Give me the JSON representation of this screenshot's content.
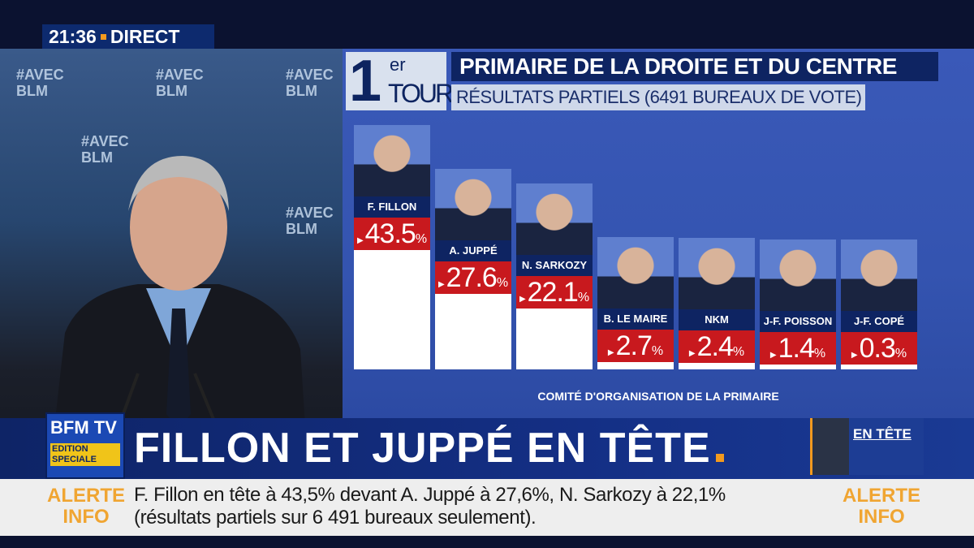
{
  "clock": {
    "time": "21:36",
    "label": "DIRECT"
  },
  "background_tags": [
    "#AVEC BLM",
    "#AVEC BLM",
    "#AVEC BLM",
    "#AVEC BLM",
    "#AVEC BLM"
  ],
  "chart_data": {
    "type": "bar",
    "tour": {
      "number": "1",
      "suffix": "er",
      "word": "TOUR"
    },
    "title": "PRIMAIRE DE LA DROITE ET DU CENTRE",
    "subtitle": "RÉSULTATS PARTIELS (6491 BUREAUX DE VOTE)",
    "categories": [
      "F. FILLON",
      "A. JUPPÉ",
      "N. SARKOZY",
      "B. LE MAIRE",
      "NKM",
      "J-F. POISSON",
      "J-F. COPÉ"
    ],
    "values": [
      43.5,
      27.6,
      22.1,
      2.7,
      2.4,
      1.4,
      0.3
    ],
    "value_labels": [
      "43.5",
      "27.6",
      "22.1",
      "2.7",
      "2.4",
      "1.4",
      "0.3"
    ],
    "unit": "%",
    "source": "COMITÉ D'ORGANISATION DE LA PRIMAIRE",
    "colors": {
      "label_bg": "#0e2462",
      "value_bg": "#c8191e",
      "bar": "#ffffff"
    }
  },
  "band": {
    "logo": "BFM TV",
    "logo_badge": "EDITION SPECIALE",
    "headline": "FILLON ET JUPPÉ EN TÊTE",
    "thumb_label": "EN TÊTE"
  },
  "ticker": {
    "alert_left": "ALERTE INFO",
    "alert_right": "ALERTE INFO",
    "line1": "F. Fillon en tête à 43,5% devant A. Juppé à 27,6%, N. Sarkozy à 22,1%",
    "line2": "(résultats partiels sur 6 491 bureaux seulement)."
  }
}
